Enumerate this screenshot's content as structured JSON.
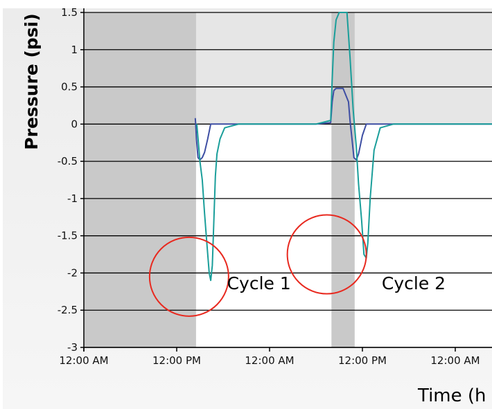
{
  "chart_data": {
    "type": "line",
    "title": "",
    "ylabel": "Pressure (psi)",
    "xlabel": "Time (h",
    "ylim": [
      -3,
      1.5
    ],
    "yticks": [
      1.5,
      1,
      0.5,
      0,
      -0.5,
      -1,
      -1.5,
      -2,
      -2.5,
      -3
    ],
    "ytick_labels": [
      "1.5",
      "1",
      "0.5",
      "0",
      "-0.5",
      "-1",
      "-1.5",
      "-2",
      "-2.5",
      "-3"
    ],
    "x_unit": "hours",
    "xlim": [
      0,
      58
    ],
    "xticks": [
      0,
      12,
      24,
      36,
      48
    ],
    "xtick_labels": [
      "12:00 AM",
      "12:00 PM",
      "12:00 AM",
      "12:00 PM",
      "12:00 AM"
    ],
    "grid": true,
    "shaded_regions": [
      {
        "x": [
          0,
          14.5
        ],
        "color": "#c9c9c9"
      },
      {
        "x": [
          32,
          35
        ],
        "color": "#c9c9c9"
      }
    ],
    "annotations": [
      {
        "text": "Cycle 1",
        "x": 18.5,
        "y": -2.22
      },
      {
        "text": "Cycle 2",
        "x": 38.5,
        "y": -2.22
      }
    ],
    "highlight_circles": [
      {
        "x": 13.6,
        "y": -2.05,
        "color": "#e8291f"
      },
      {
        "x": 31.4,
        "y": -1.75,
        "color": "#e8291f"
      }
    ],
    "series": [
      {
        "color": "#3d4ea3",
        "x": [
          14.4,
          14.45,
          14.55,
          14.75,
          15.0,
          15.3,
          15.6,
          16.0,
          16.4,
          17.0,
          20,
          25,
          30,
          31.9,
          32.1,
          32.3,
          32.6,
          33.5,
          34.2,
          34.4,
          34.6,
          34.9,
          35.2,
          35.5,
          35.7,
          36.0,
          36.5,
          37.5,
          40,
          45,
          50,
          58
        ],
        "values": [
          0.08,
          0.0,
          -0.2,
          -0.45,
          -0.48,
          -0.45,
          -0.38,
          -0.2,
          0.0,
          0.0,
          0.0,
          0.0,
          0.0,
          0.02,
          0.3,
          0.45,
          0.48,
          0.48,
          0.3,
          0.05,
          -0.15,
          -0.45,
          -0.48,
          -0.4,
          -0.3,
          -0.15,
          0.0,
          0.0,
          0.0,
          0.0,
          0.0,
          0.0
        ]
      },
      {
        "color": "#1a9e9a",
        "x": [
          14.6,
          14.8,
          15.0,
          15.3,
          15.6,
          15.9,
          16.2,
          16.4,
          16.6,
          16.8,
          17.0,
          17.2,
          17.6,
          18.2,
          20,
          25,
          30,
          31.9,
          32.1,
          32.3,
          32.6,
          33.0,
          33.5,
          34.0,
          34.4,
          34.8,
          35.2,
          35.5,
          35.9,
          36.2,
          36.5,
          36.7,
          37.0,
          37.5,
          38.3,
          40,
          45,
          50,
          58
        ],
        "values": [
          0.0,
          -0.25,
          -0.5,
          -0.75,
          -1.2,
          -1.6,
          -2.0,
          -2.1,
          -1.9,
          -1.3,
          -0.7,
          -0.4,
          -0.2,
          -0.05,
          0.0,
          0.0,
          0.0,
          0.05,
          0.6,
          1.1,
          1.4,
          1.5,
          1.5,
          1.5,
          0.9,
          0.2,
          -0.3,
          -0.8,
          -1.3,
          -1.75,
          -1.8,
          -1.6,
          -1.0,
          -0.35,
          -0.05,
          0.0,
          0.0,
          0.0,
          0.0
        ]
      }
    ]
  }
}
